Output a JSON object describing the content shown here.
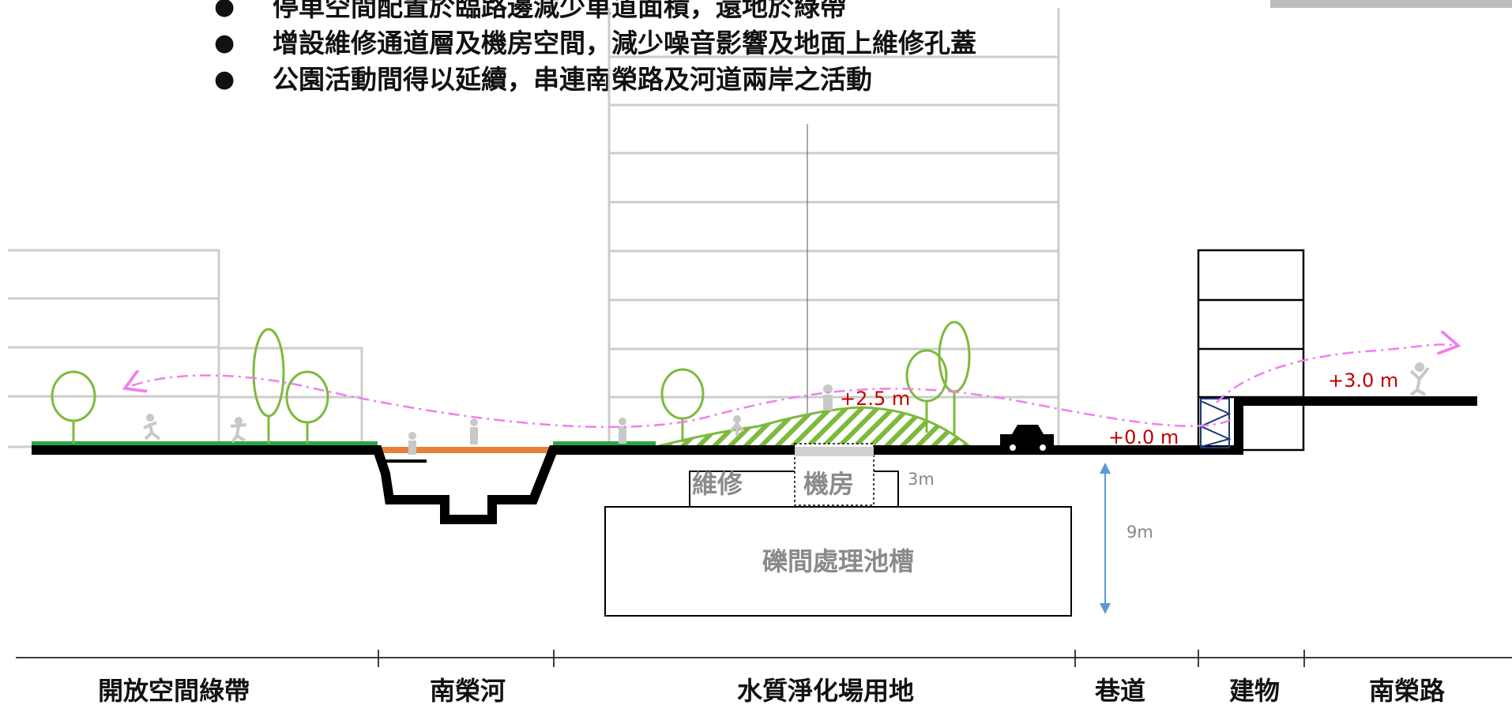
{
  "bullets": [
    "停車空間配置於臨路邊減少車道面積，還地於綠帶",
    "增設維修通道層及機房空間，減少噪音影響及地面上維修孔蓋",
    "公園活動間得以延續，串連南榮路及河道兩岸之活動"
  ],
  "elevations": {
    "park_mound": "+2.5 m",
    "alley": "+0.0 m",
    "road": "+3.0 m"
  },
  "underground": {
    "maintenance": "維修",
    "machine_room": "機房",
    "tank": "礫間處理池槽",
    "layer_height": "3m",
    "depth": "9m"
  },
  "zones": [
    "開放空間綠帶",
    "南榮河",
    "水質淨化場用地",
    "巷道",
    "建物",
    "南榮路"
  ],
  "colors": {
    "ground": "#000000",
    "grass": "#2aa64a",
    "river": "#e8823a",
    "tree": "#7dba3c",
    "activity_path": "#ee80ee",
    "elevation_text": "#c00000",
    "dimension_arrow": "#5b9bd5",
    "ghost_buildings": "#cccccc"
  }
}
